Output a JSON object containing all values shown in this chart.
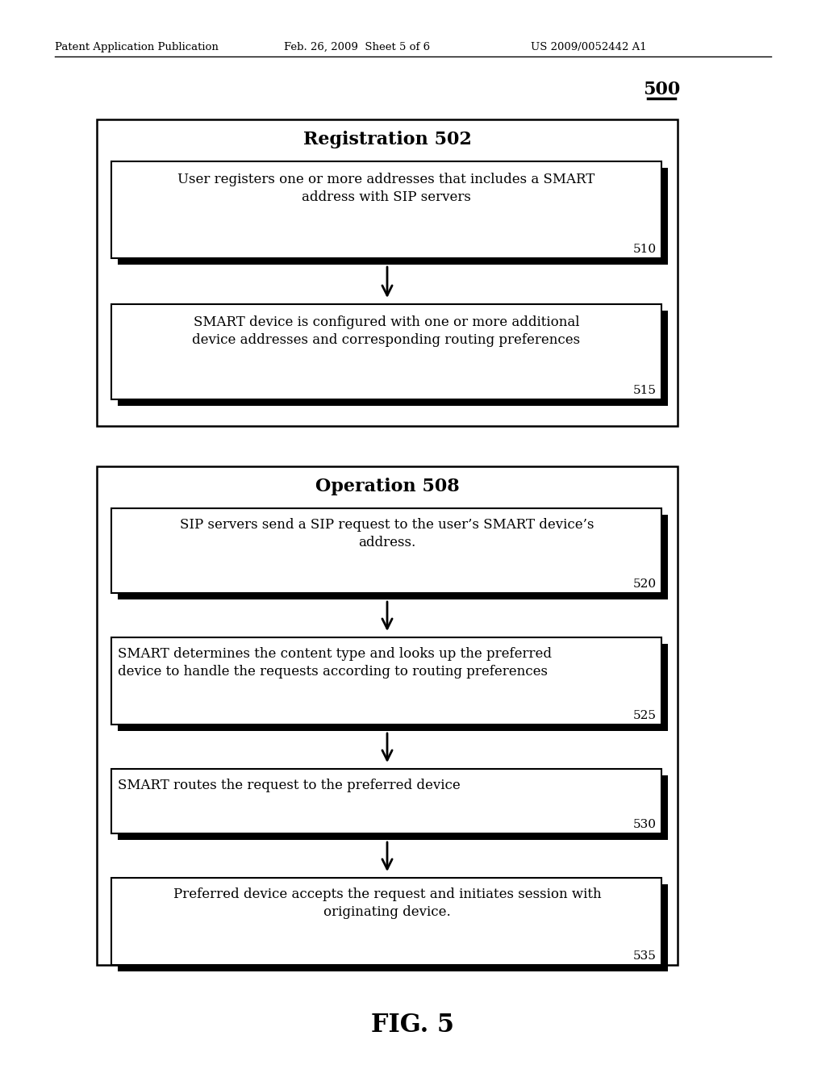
{
  "background_color": "#ffffff",
  "header_left": "Patent Application Publication",
  "header_mid": "Feb. 26, 2009  Sheet 5 of 6",
  "header_right": "US 2009/0052442 A1",
  "fig_label": "500",
  "fig_caption": "FIG. 5",
  "reg_title": "Registration 502",
  "reg_box1_text_line1": "User registers one or more addresses that includes a SMART",
  "reg_box1_text_line2": "address with SIP servers",
  "reg_box1_num": "510",
  "reg_box2_text_line1": "SMART device is configured with one or more additional",
  "reg_box2_text_line2": "device addresses and corresponding routing preferences",
  "reg_box2_num": "515",
  "op_title": "Operation 508",
  "op_box1_text_line1": "SIP servers send a SIP request to the user’s SMART device’s",
  "op_box1_text_line2": "address.",
  "op_box1_num": "520",
  "op_box2_text_line1": "SMART determines the content type and looks up the preferred",
  "op_box2_text_line2": "device to handle the requests according to routing preferences",
  "op_box2_num": "525",
  "op_box3_text": "SMART routes the request to the preferred device",
  "op_box3_num": "530",
  "op_box4_text_line1": "Preferred device accepts the request and initiates session with",
  "op_box4_text_line2": "originating device.",
  "op_box4_num": "535"
}
